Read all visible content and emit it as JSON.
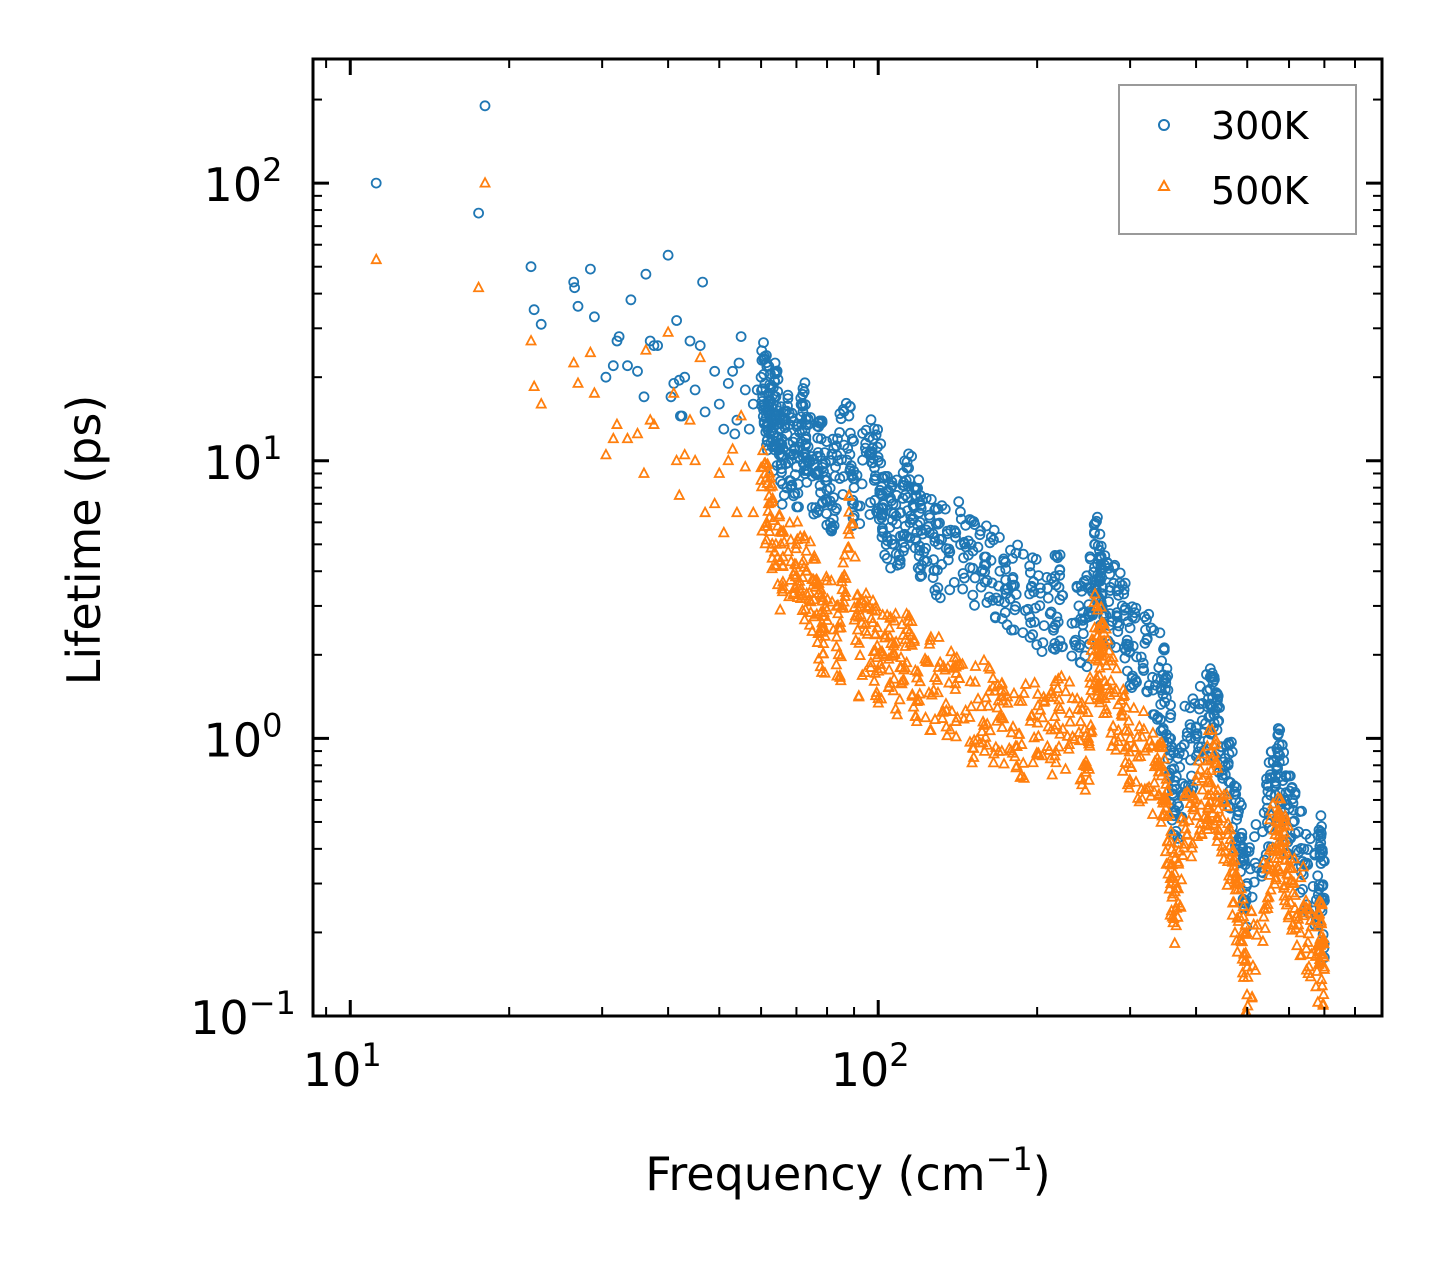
{
  "chart_data": {
    "type": "scatter",
    "title": "",
    "xlabel": "Frequency (cm",
    "xlabel_sup": "−1",
    "xlabel_end": ")",
    "ylabel": "Lifetime (ps)",
    "xscale": "log",
    "yscale": "log",
    "xlim": [
      8.5,
      900
    ],
    "ylim": [
      0.1,
      280
    ],
    "x_ticks": [
      {
        "value": 10,
        "base": "10",
        "exp": "1"
      },
      {
        "value": 100,
        "base": "10",
        "exp": "2"
      }
    ],
    "y_ticks": [
      {
        "value": 0.1,
        "base": "10",
        "exp": "−1"
      },
      {
        "value": 1,
        "base": "10",
        "exp": "0"
      },
      {
        "value": 10,
        "base": "10",
        "exp": "1"
      },
      {
        "value": 100,
        "base": "10",
        "exp": "2"
      }
    ],
    "legend_position": "top-right",
    "series": [
      {
        "name": "300K",
        "marker": "circle",
        "color": "#1f77b4",
        "points": [
          [
            11.2,
            100
          ],
          [
            17.5,
            78
          ],
          [
            18.0,
            190
          ],
          [
            22.0,
            50
          ],
          [
            22.3,
            35
          ],
          [
            23.0,
            31
          ],
          [
            26.5,
            44
          ],
          [
            26.6,
            42
          ],
          [
            27.0,
            36
          ],
          [
            28.5,
            49
          ],
          [
            29.0,
            33
          ],
          [
            30.5,
            20
          ],
          [
            31.5,
            22
          ],
          [
            32.0,
            27
          ],
          [
            32.3,
            28
          ],
          [
            33.5,
            22
          ],
          [
            34.0,
            38
          ],
          [
            35.0,
            21
          ],
          [
            36.0,
            17
          ],
          [
            36.3,
            47
          ],
          [
            37.0,
            27
          ],
          [
            37.6,
            26
          ],
          [
            38.2,
            26
          ],
          [
            40.0,
            55
          ],
          [
            40.5,
            17
          ],
          [
            41.0,
            19
          ],
          [
            41.5,
            32
          ],
          [
            42.0,
            19.5
          ],
          [
            42.2,
            14.5
          ],
          [
            42.5,
            14.5
          ],
          [
            43.0,
            20
          ],
          [
            44.0,
            27
          ],
          [
            45.0,
            18
          ],
          [
            46.0,
            26
          ],
          [
            46.5,
            44
          ],
          [
            47.0,
            15
          ],
          [
            49.0,
            21
          ],
          [
            50.0,
            16
          ],
          [
            51.0,
            13
          ],
          [
            52.0,
            19
          ],
          [
            53.0,
            21
          ],
          [
            53.5,
            12.5
          ],
          [
            54.0,
            14
          ],
          [
            54.5,
            22.5
          ],
          [
            55.0,
            28
          ],
          [
            56.0,
            18
          ],
          [
            57.0,
            13
          ],
          [
            58.0,
            16
          ],
          [
            59.0,
            18
          ],
          [
            60.0,
            20
          ],
          [
            61.0,
            19
          ],
          [
            62.0,
            17
          ],
          [
            63.0,
            14
          ],
          [
            64.0,
            17
          ],
          [
            65.0,
            13
          ],
          [
            66.0,
            10.5
          ],
          [
            68.0,
            13.5
          ],
          [
            70.0,
            9.5
          ],
          [
            72.0,
            15
          ],
          [
            73.0,
            13.5
          ],
          [
            76.0,
            9
          ],
          [
            78.0,
            12
          ],
          [
            80.0,
            8.5
          ],
          [
            83.0,
            9.5
          ],
          [
            88.0,
            14.5
          ],
          [
            90.0,
            8
          ],
          [
            97.0,
            10.5
          ],
          [
            100.0,
            10
          ],
          [
            102.0,
            7.5
          ],
          [
            106.0,
            6.5
          ],
          [
            110.0,
            6.5
          ],
          [
            113.0,
            8.5
          ],
          [
            117.0,
            8
          ],
          [
            120.0,
            6
          ],
          [
            125.0,
            5.5
          ],
          [
            130.0,
            5
          ],
          [
            140.0,
            5.5
          ],
          [
            150.0,
            5
          ],
          [
            160.0,
            4.5
          ],
          [
            170.0,
            4
          ],
          [
            180.0,
            3.8
          ],
          [
            195.0,
            3.5
          ],
          [
            210.0,
            3.2
          ],
          [
            220.0,
            3.5
          ],
          [
            240.0,
            3.0
          ],
          [
            250.0,
            2.8
          ],
          [
            257.0,
            5
          ],
          [
            262.0,
            4.5
          ],
          [
            265.0,
            3.8
          ],
          [
            275.0,
            3.5
          ],
          [
            290.0,
            3.0
          ],
          [
            300.0,
            2.5
          ],
          [
            320.0,
            2.2
          ],
          [
            340.0,
            1.8
          ],
          [
            350.0,
            1.5
          ],
          [
            358.0,
            1.0
          ],
          [
            365.0,
            0.55
          ],
          [
            380.0,
            0.95
          ],
          [
            400.0,
            1.1
          ],
          [
            420.0,
            1.3
          ],
          [
            430.0,
            1.4
          ],
          [
            440.0,
            1.15
          ],
          [
            460.0,
            0.8
          ],
          [
            475.0,
            0.6
          ],
          [
            490.0,
            0.4
          ],
          [
            500.0,
            0.3
          ],
          [
            545.0,
            0.6
          ],
          [
            565.0,
            0.7
          ],
          [
            575.0,
            0.82
          ],
          [
            590.0,
            0.6
          ],
          [
            610.0,
            0.5
          ],
          [
            640.0,
            0.4
          ],
          [
            680.0,
            0.32
          ],
          [
            690.0,
            0.4
          ],
          [
            700.0,
            0.26
          ]
        ]
      },
      {
        "name": "500K",
        "marker": "triangle",
        "color": "#ff7f0e",
        "points": [
          [
            11.2,
            53
          ],
          [
            17.5,
            42
          ],
          [
            18.0,
            100
          ],
          [
            22.0,
            27
          ],
          [
            22.3,
            18.5
          ],
          [
            23.0,
            16
          ],
          [
            26.5,
            22.5
          ],
          [
            27.0,
            19
          ],
          [
            28.5,
            24.5
          ],
          [
            29.0,
            17.5
          ],
          [
            30.5,
            10.5
          ],
          [
            31.5,
            12
          ],
          [
            32.0,
            13.5
          ],
          [
            33.5,
            12
          ],
          [
            35.0,
            12.5
          ],
          [
            36.0,
            9
          ],
          [
            36.3,
            25
          ],
          [
            37.0,
            14
          ],
          [
            37.6,
            13.5
          ],
          [
            40.0,
            29
          ],
          [
            41.0,
            17.5
          ],
          [
            41.5,
            10
          ],
          [
            42.0,
            7.5
          ],
          [
            43.0,
            10.5
          ],
          [
            44.0,
            14
          ],
          [
            45.0,
            10
          ],
          [
            46.0,
            23.5
          ],
          [
            47.0,
            6.5
          ],
          [
            49.0,
            7
          ],
          [
            50.0,
            9
          ],
          [
            51.0,
            5.5
          ],
          [
            52.0,
            10
          ],
          [
            53.0,
            11
          ],
          [
            54.0,
            6.5
          ],
          [
            55.0,
            14.5
          ],
          [
            56.0,
            9.5
          ],
          [
            58.0,
            6.5
          ],
          [
            60.0,
            8.5
          ],
          [
            62.0,
            7
          ],
          [
            64.0,
            5
          ],
          [
            66.0,
            4.5
          ],
          [
            70.0,
            5
          ],
          [
            73.0,
            4
          ],
          [
            76.0,
            3.5
          ],
          [
            78.0,
            2.5
          ],
          [
            80.0,
            2.9
          ],
          [
            85.0,
            2.5
          ],
          [
            88.0,
            7.5
          ],
          [
            92.0,
            2.2
          ],
          [
            97.0,
            2.7
          ],
          [
            100.0,
            2
          ],
          [
            105.0,
            2.5
          ],
          [
            110.0,
            1.8
          ],
          [
            115.0,
            2.2
          ],
          [
            120.0,
            1.6
          ],
          [
            130.0,
            1.8
          ],
          [
            140.0,
            1.5
          ],
          [
            150.0,
            1.3
          ],
          [
            160.0,
            1.4
          ],
          [
            170.0,
            1.2
          ],
          [
            180.0,
            1.1
          ],
          [
            195.0,
            1.2
          ],
          [
            210.0,
            1.1
          ],
          [
            220.0,
            1.3
          ],
          [
            240.0,
            1.05
          ],
          [
            250.0,
            1.0
          ],
          [
            257.0,
            2.5
          ],
          [
            262.0,
            2.0
          ],
          [
            265.0,
            2.2
          ],
          [
            275.0,
            1.5
          ],
          [
            290.0,
            1.2
          ],
          [
            300.0,
            1.0
          ],
          [
            320.0,
            0.9
          ],
          [
            340.0,
            0.8
          ],
          [
            350.0,
            0.6
          ],
          [
            358.0,
            0.35
          ],
          [
            365.0,
            0.28
          ],
          [
            380.0,
            0.5
          ],
          [
            400.0,
            0.6
          ],
          [
            420.0,
            0.75
          ],
          [
            430.0,
            0.85
          ],
          [
            440.0,
            0.65
          ],
          [
            460.0,
            0.45
          ],
          [
            475.0,
            0.3
          ],
          [
            490.0,
            0.2
          ],
          [
            500.0,
            0.15
          ],
          [
            545.0,
            0.35
          ],
          [
            565.0,
            0.45
          ],
          [
            575.0,
            0.5
          ],
          [
            590.0,
            0.4
          ],
          [
            610.0,
            0.3
          ],
          [
            640.0,
            0.25
          ],
          [
            680.0,
            0.18
          ],
          [
            690.0,
            0.22
          ],
          [
            700.0,
            0.15
          ]
        ]
      }
    ]
  }
}
